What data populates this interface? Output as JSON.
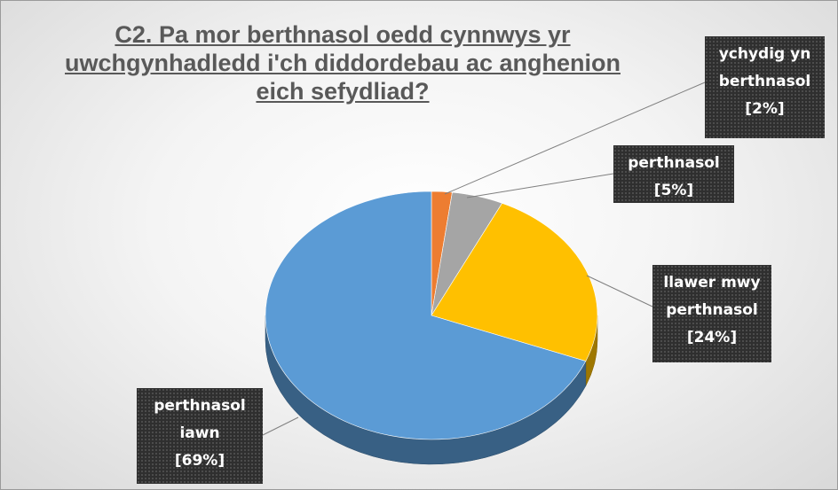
{
  "chart_data": {
    "type": "pie",
    "title": "C2. Pa mor berthnasol oedd cynnwys yr uwchgynhadledd i'ch diddordebau ac anghenion eich sefydliad?",
    "categories": [
      "ychydig yn berthnasol",
      "perthnasol",
      "llawer mwy perthnasol",
      "perthnasol iawn"
    ],
    "values": [
      2,
      5,
      24,
      69
    ],
    "value_labels": [
      "[2%]",
      "[5%]",
      "[24%]",
      "[69%]"
    ],
    "colors": [
      "#ed7d31",
      "#a5a5a5",
      "#ffc000",
      "#5b9bd5"
    ]
  }
}
